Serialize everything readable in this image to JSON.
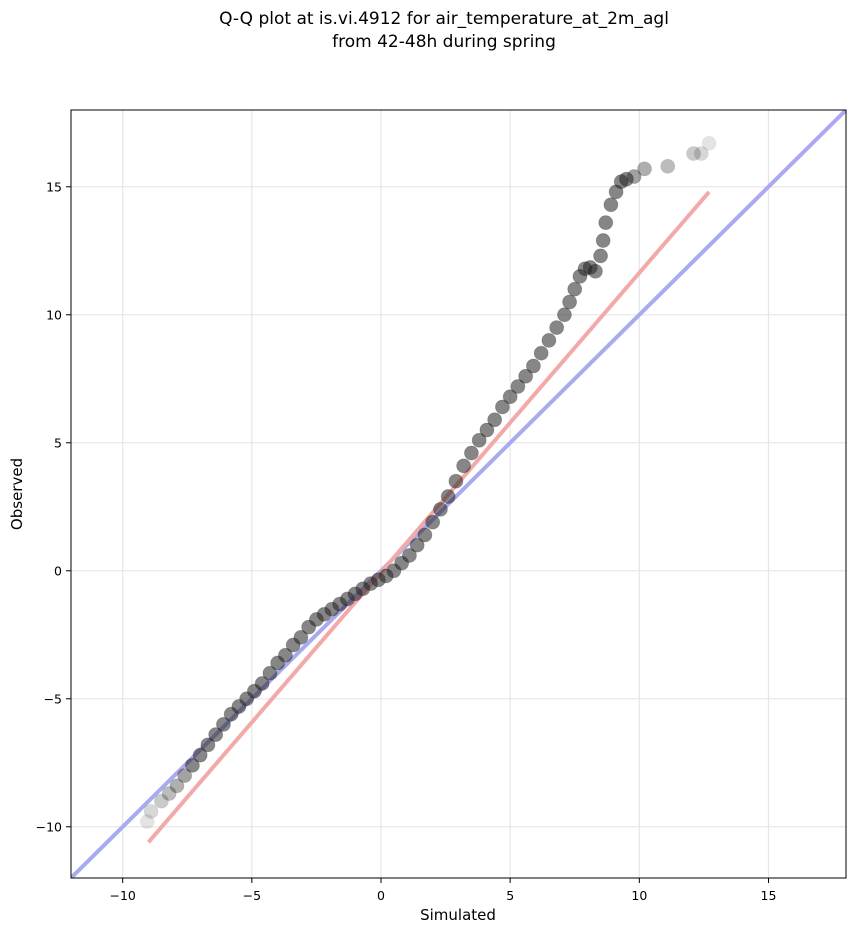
{
  "chart_data": {
    "type": "scatter",
    "title_line1": "Q-Q plot at is.vi.4912 for air_temperature_at_2m_agl",
    "title_line2": "from 42-48h during spring",
    "xlabel": "Simulated",
    "ylabel": "Observed",
    "xlim": [
      -12,
      18
    ],
    "ylim": [
      -12,
      18
    ],
    "xticks": [
      -10,
      -5,
      0,
      5,
      10,
      15
    ],
    "yticks": [
      -10,
      -5,
      0,
      5,
      10,
      15
    ],
    "xtick_labels": [
      "−10",
      "−5",
      "0",
      "5",
      "10",
      "15"
    ],
    "ytick_labels": [
      "−10",
      "−5",
      "0",
      "5",
      "10",
      "15"
    ],
    "grid": true,
    "lines": [
      {
        "color": "#aaaaf0",
        "x": [
          -12,
          18
        ],
        "y": [
          -12,
          18
        ]
      },
      {
        "color": "#f4a9a9",
        "x": [
          -9.0,
          12.7
        ],
        "y": [
          -10.6,
          14.8
        ]
      }
    ],
    "points": {
      "x": [
        -9.05,
        -8.9,
        -8.5,
        -8.2,
        -7.9,
        -7.6,
        -7.3,
        -7.0,
        -6.7,
        -6.4,
        -6.1,
        -5.8,
        -5.5,
        -5.2,
        -4.9,
        -4.6,
        -4.3,
        -4.0,
        -3.7,
        -3.4,
        -3.1,
        -2.8,
        -2.5,
        -2.2,
        -1.9,
        -1.6,
        -1.3,
        -1.0,
        -0.7,
        -0.4,
        -0.1,
        0.2,
        0.5,
        0.8,
        1.1,
        1.4,
        1.7,
        2.0,
        2.3,
        2.6,
        2.9,
        3.2,
        3.5,
        3.8,
        4.1,
        4.4,
        4.7,
        5.0,
        5.3,
        5.6,
        5.9,
        6.2,
        6.5,
        6.8,
        7.1,
        7.3,
        7.5,
        7.7,
        7.9,
        8.1,
        8.3,
        8.5,
        8.6,
        8.7,
        8.9,
        9.1,
        9.3,
        9.5,
        9.8,
        10.2,
        11.1,
        12.1,
        12.4,
        12.7
      ],
      "y": [
        -9.8,
        -9.4,
        -9.0,
        -8.7,
        -8.4,
        -8.0,
        -7.6,
        -7.2,
        -6.8,
        -6.4,
        -6.0,
        -5.6,
        -5.3,
        -5.0,
        -4.7,
        -4.4,
        -4.0,
        -3.6,
        -3.3,
        -2.9,
        -2.6,
        -2.2,
        -1.9,
        -1.7,
        -1.5,
        -1.3,
        -1.1,
        -0.9,
        -0.7,
        -0.5,
        -0.35,
        -0.2,
        0.0,
        0.3,
        0.6,
        1.0,
        1.4,
        1.9,
        2.4,
        2.9,
        3.5,
        4.1,
        4.6,
        5.1,
        5.5,
        5.9,
        6.4,
        6.8,
        7.2,
        7.6,
        8.0,
        8.5,
        9.0,
        9.5,
        10.0,
        10.5,
        11.0,
        11.5,
        11.8,
        11.85,
        11.7,
        12.3,
        12.9,
        13.6,
        14.3,
        14.8,
        15.2,
        15.3,
        15.4,
        15.7,
        15.8,
        16.3,
        16.3,
        16.7
      ]
    }
  }
}
